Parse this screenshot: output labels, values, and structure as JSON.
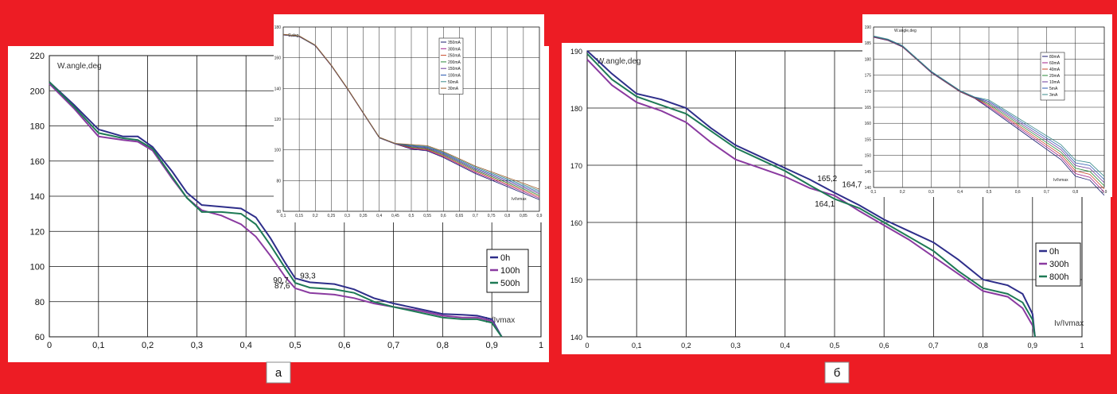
{
  "panels": [
    {
      "caption": "а",
      "main": {
        "type": "line",
        "ylabel": "W.angle,deg",
        "xlabel": "Iv/Ivmax",
        "xlim": [
          0,
          1
        ],
        "ylim": [
          60,
          220
        ],
        "xticks": [
          0,
          0.1,
          0.2,
          0.3,
          0.4,
          0.5,
          0.6,
          0.7,
          0.8,
          0.9,
          1
        ],
        "xtick_labels": [
          "0",
          "0,1",
          "0,2",
          "0,3",
          "0,4",
          "0,5",
          "0,6",
          "0,7",
          "0,8",
          "0,9",
          "1"
        ],
        "yticks": [
          60,
          80,
          100,
          120,
          140,
          160,
          180,
          200,
          220
        ],
        "ytick_labels": [
          "60",
          "80",
          "100",
          "120",
          "140",
          "160",
          "180",
          "200",
          "220"
        ],
        "series": [
          {
            "name": "0h",
            "color": "#2e2e8a",
            "points": [
              [
                0,
                205
              ],
              [
                0.05,
                192
              ],
              [
                0.1,
                178
              ],
              [
                0.15,
                174
              ],
              [
                0.18,
                174
              ],
              [
                0.21,
                168
              ],
              [
                0.25,
                154
              ],
              [
                0.28,
                142
              ],
              [
                0.31,
                135
              ],
              [
                0.35,
                134
              ],
              [
                0.39,
                133
              ],
              [
                0.42,
                128
              ],
              [
                0.45,
                116
              ],
              [
                0.48,
                102
              ],
              [
                0.5,
                93.3
              ],
              [
                0.53,
                91
              ],
              [
                0.58,
                90
              ],
              [
                0.62,
                87
              ],
              [
                0.66,
                82
              ],
              [
                0.7,
                79
              ],
              [
                0.75,
                76
              ],
              [
                0.8,
                73
              ],
              [
                0.84,
                72.5
              ],
              [
                0.87,
                72
              ],
              [
                0.9,
                70
              ],
              [
                0.92,
                60
              ]
            ]
          },
          {
            "name": "100h",
            "color": "#8a3aa0",
            "points": [
              [
                0,
                204
              ],
              [
                0.05,
                190
              ],
              [
                0.1,
                174
              ],
              [
                0.15,
                172
              ],
              [
                0.18,
                171
              ],
              [
                0.21,
                166
              ],
              [
                0.25,
                150
              ],
              [
                0.28,
                139
              ],
              [
                0.31,
                132
              ],
              [
                0.35,
                129
              ],
              [
                0.39,
                124
              ],
              [
                0.42,
                117
              ],
              [
                0.45,
                106
              ],
              [
                0.48,
                94
              ],
              [
                0.5,
                87.6
              ],
              [
                0.53,
                85
              ],
              [
                0.58,
                84
              ],
              [
                0.62,
                82
              ],
              [
                0.66,
                79
              ],
              [
                0.7,
                77
              ],
              [
                0.75,
                75
              ],
              [
                0.8,
                72
              ],
              [
                0.84,
                71
              ],
              [
                0.87,
                71
              ],
              [
                0.9,
                69
              ],
              [
                0.92,
                60
              ]
            ]
          },
          {
            "name": "500h",
            "color": "#1e7a55",
            "points": [
              [
                0,
                205
              ],
              [
                0.05,
                191
              ],
              [
                0.1,
                176
              ],
              [
                0.15,
                173
              ],
              [
                0.18,
                172
              ],
              [
                0.21,
                167
              ],
              [
                0.25,
                151
              ],
              [
                0.28,
                139
              ],
              [
                0.31,
                131
              ],
              [
                0.35,
                131
              ],
              [
                0.39,
                130
              ],
              [
                0.42,
                124
              ],
              [
                0.45,
                112
              ],
              [
                0.48,
                99
              ],
              [
                0.5,
                90.7
              ],
              [
                0.53,
                88
              ],
              [
                0.58,
                87
              ],
              [
                0.62,
                85
              ],
              [
                0.66,
                80
              ],
              [
                0.7,
                77
              ],
              [
                0.75,
                74
              ],
              [
                0.8,
                71
              ],
              [
                0.84,
                70
              ],
              [
                0.87,
                70
              ],
              [
                0.9,
                68
              ],
              [
                0.92,
                60
              ]
            ]
          }
        ],
        "annotations": [
          {
            "text": "93,3",
            "x": 0.51,
            "y": 93.3
          },
          {
            "text": "90,7",
            "x": 0.455,
            "y": 90.7
          },
          {
            "text": "87,6",
            "x": 0.458,
            "y": 87.6
          }
        ]
      },
      "inset": {
        "type": "line",
        "ylabel": "C,deg",
        "xlabel": "Iv/Ivmax",
        "xlim": [
          0.1,
          0.9
        ],
        "ylim": [
          60,
          180
        ],
        "xticks": [
          0.1,
          0.15,
          0.2,
          0.25,
          0.3,
          0.35,
          0.4,
          0.45,
          0.5,
          0.55,
          0.6,
          0.65,
          0.7,
          0.75,
          0.8,
          0.85,
          0.9
        ],
        "xtick_labels": [
          "0,1",
          "0,15",
          "0,2",
          "0,25",
          "0,3",
          "0,35",
          "0,4",
          "0,45",
          "0,5",
          "0,55",
          "0,6",
          "0,65",
          "0,7",
          "0,75",
          "0,8",
          "0,85",
          "0,9"
        ],
        "yticks": [
          60,
          80,
          100,
          120,
          140,
          160,
          180
        ],
        "ytick_labels": [
          "60",
          "80",
          "100",
          "120",
          "140",
          "160",
          "180"
        ],
        "series": [
          {
            "name": "350mA",
            "color": "#1a1a6e"
          },
          {
            "name": "300mA",
            "color": "#a0208a"
          },
          {
            "name": "250mA",
            "color": "#c84a2a"
          },
          {
            "name": "200mA",
            "color": "#2a8a3a"
          },
          {
            "name": "150mA",
            "color": "#6a3a9a"
          },
          {
            "name": "100mA",
            "color": "#2a5ab0"
          },
          {
            "name": "50mA",
            "color": "#3a8a8a"
          },
          {
            "name": "30mA",
            "color": "#9a5a2a"
          }
        ],
        "base_curve": [
          [
            0.1,
            175
          ],
          [
            0.15,
            174
          ],
          [
            0.2,
            168
          ],
          [
            0.25,
            155
          ],
          [
            0.3,
            140
          ],
          [
            0.35,
            124
          ],
          [
            0.4,
            108
          ],
          [
            0.45,
            104
          ],
          [
            0.5,
            102
          ],
          [
            0.55,
            101
          ],
          [
            0.6,
            97
          ],
          [
            0.65,
            92
          ],
          [
            0.7,
            87
          ],
          [
            0.75,
            83
          ],
          [
            0.8,
            79
          ],
          [
            0.85,
            75
          ],
          [
            0.9,
            71
          ]
        ]
      }
    },
    {
      "caption": "б",
      "main": {
        "type": "line",
        "ylabel": "W.angle,deg",
        "xlabel": "Iv/Ivmax",
        "xlim": [
          0,
          1
        ],
        "ylim": [
          140,
          190
        ],
        "xticks": [
          0,
          0.1,
          0.2,
          0.3,
          0.4,
          0.5,
          0.6,
          0.7,
          0.8,
          0.9,
          1
        ],
        "xtick_labels": [
          "0",
          "0,1",
          "0,2",
          "0,3",
          "0,4",
          "0,5",
          "0,6",
          "0,7",
          "0,8",
          "0,9",
          "1"
        ],
        "yticks": [
          140,
          150,
          160,
          170,
          180,
          190
        ],
        "ytick_labels": [
          "140",
          "150",
          "160",
          "170",
          "180",
          "190"
        ],
        "series": [
          {
            "name": "0h",
            "color": "#2e2e8a",
            "points": [
              [
                0,
                190
              ],
              [
                0.05,
                186
              ],
              [
                0.1,
                182.5
              ],
              [
                0.15,
                181.5
              ],
              [
                0.2,
                180
              ],
              [
                0.25,
                176.5
              ],
              [
                0.3,
                173.5
              ],
              [
                0.35,
                171.5
              ],
              [
                0.4,
                169.5
              ],
              [
                0.45,
                167.5
              ],
              [
                0.5,
                165.2
              ],
              [
                0.55,
                163
              ],
              [
                0.6,
                160.5
              ],
              [
                0.65,
                158.5
              ],
              [
                0.7,
                156.5
              ],
              [
                0.75,
                153.5
              ],
              [
                0.8,
                150
              ],
              [
                0.85,
                149
              ],
              [
                0.88,
                147.5
              ],
              [
                0.9,
                144
              ],
              [
                0.905,
                140
              ]
            ]
          },
          {
            "name": "300h",
            "color": "#8a3aa0",
            "points": [
              [
                0,
                188.5
              ],
              [
                0.05,
                184
              ],
              [
                0.1,
                181
              ],
              [
                0.15,
                179.5
              ],
              [
                0.2,
                177.5
              ],
              [
                0.25,
                174
              ],
              [
                0.3,
                171
              ],
              [
                0.35,
                169.5
              ],
              [
                0.4,
                168
              ],
              [
                0.45,
                166
              ],
              [
                0.5,
                164.7
              ],
              [
                0.55,
                162
              ],
              [
                0.6,
                159.5
              ],
              [
                0.65,
                157
              ],
              [
                0.7,
                154
              ],
              [
                0.75,
                151
              ],
              [
                0.8,
                148
              ],
              [
                0.85,
                147
              ],
              [
                0.88,
                145
              ],
              [
                0.9,
                142
              ],
              [
                0.905,
                140
              ]
            ]
          },
          {
            "name": "800h",
            "color": "#1e7a55",
            "points": [
              [
                0,
                189.5
              ],
              [
                0.05,
                185
              ],
              [
                0.1,
                182
              ],
              [
                0.15,
                180.5
              ],
              [
                0.2,
                179
              ],
              [
                0.25,
                176
              ],
              [
                0.3,
                173
              ],
              [
                0.35,
                171
              ],
              [
                0.4,
                169
              ],
              [
                0.45,
                166.5
              ],
              [
                0.5,
                164.1
              ],
              [
                0.55,
                162.5
              ],
              [
                0.6,
                160
              ],
              [
                0.65,
                157.5
              ],
              [
                0.7,
                155
              ],
              [
                0.75,
                151.5
              ],
              [
                0.8,
                148.5
              ],
              [
                0.85,
                147.5
              ],
              [
                0.88,
                146
              ],
              [
                0.9,
                143
              ],
              [
                0.905,
                140
              ]
            ]
          }
        ],
        "annotations": [
          {
            "text": "165,2",
            "x": 0.465,
            "y": 167.2
          },
          {
            "text": "164,7",
            "x": 0.515,
            "y": 166.2
          },
          {
            "text": "164,1",
            "x": 0.46,
            "y": 162.8
          }
        ]
      },
      "inset": {
        "type": "line",
        "ylabel": "W.angle,deg",
        "xlabel": "Iv/Ivmax",
        "xlim": [
          0.1,
          0.9
        ],
        "ylim": [
          140,
          190
        ],
        "xticks": [
          0.1,
          0.2,
          0.3,
          0.4,
          0.5,
          0.6,
          0.7,
          0.8,
          0.9
        ],
        "xtick_labels": [
          "0,1",
          "0,2",
          "0,3",
          "0,4",
          "0,5",
          "0,6",
          "0,7",
          "0,8",
          "0,9"
        ],
        "yticks": [
          140,
          145,
          150,
          155,
          160,
          165,
          170,
          175,
          180,
          185,
          190
        ],
        "ytick_labels": [
          "140",
          "145",
          "150",
          "155",
          "160",
          "165",
          "170",
          "175",
          "180",
          "185",
          "190"
        ],
        "series": [
          {
            "name": "80mA",
            "color": "#1a1a6e"
          },
          {
            "name": "60mA",
            "color": "#a0208a"
          },
          {
            "name": "40mA",
            "color": "#c84a2a"
          },
          {
            "name": "20mA",
            "color": "#2a8a3a"
          },
          {
            "name": "10mA",
            "color": "#6a3a9a"
          },
          {
            "name": "5mA",
            "color": "#2a5ab0"
          },
          {
            "name": "3mA",
            "color": "#3a8a8a"
          }
        ],
        "base_curve": [
          [
            0.1,
            187
          ],
          [
            0.15,
            186
          ],
          [
            0.2,
            184
          ],
          [
            0.25,
            180
          ],
          [
            0.3,
            176
          ],
          [
            0.35,
            173
          ],
          [
            0.4,
            170
          ],
          [
            0.45,
            168
          ],
          [
            0.5,
            166
          ],
          [
            0.55,
            163
          ],
          [
            0.6,
            160
          ],
          [
            0.65,
            157
          ],
          [
            0.7,
            154
          ],
          [
            0.75,
            151
          ],
          [
            0.8,
            146
          ],
          [
            0.85,
            145
          ],
          [
            0.9,
            140.5
          ]
        ]
      }
    }
  ]
}
